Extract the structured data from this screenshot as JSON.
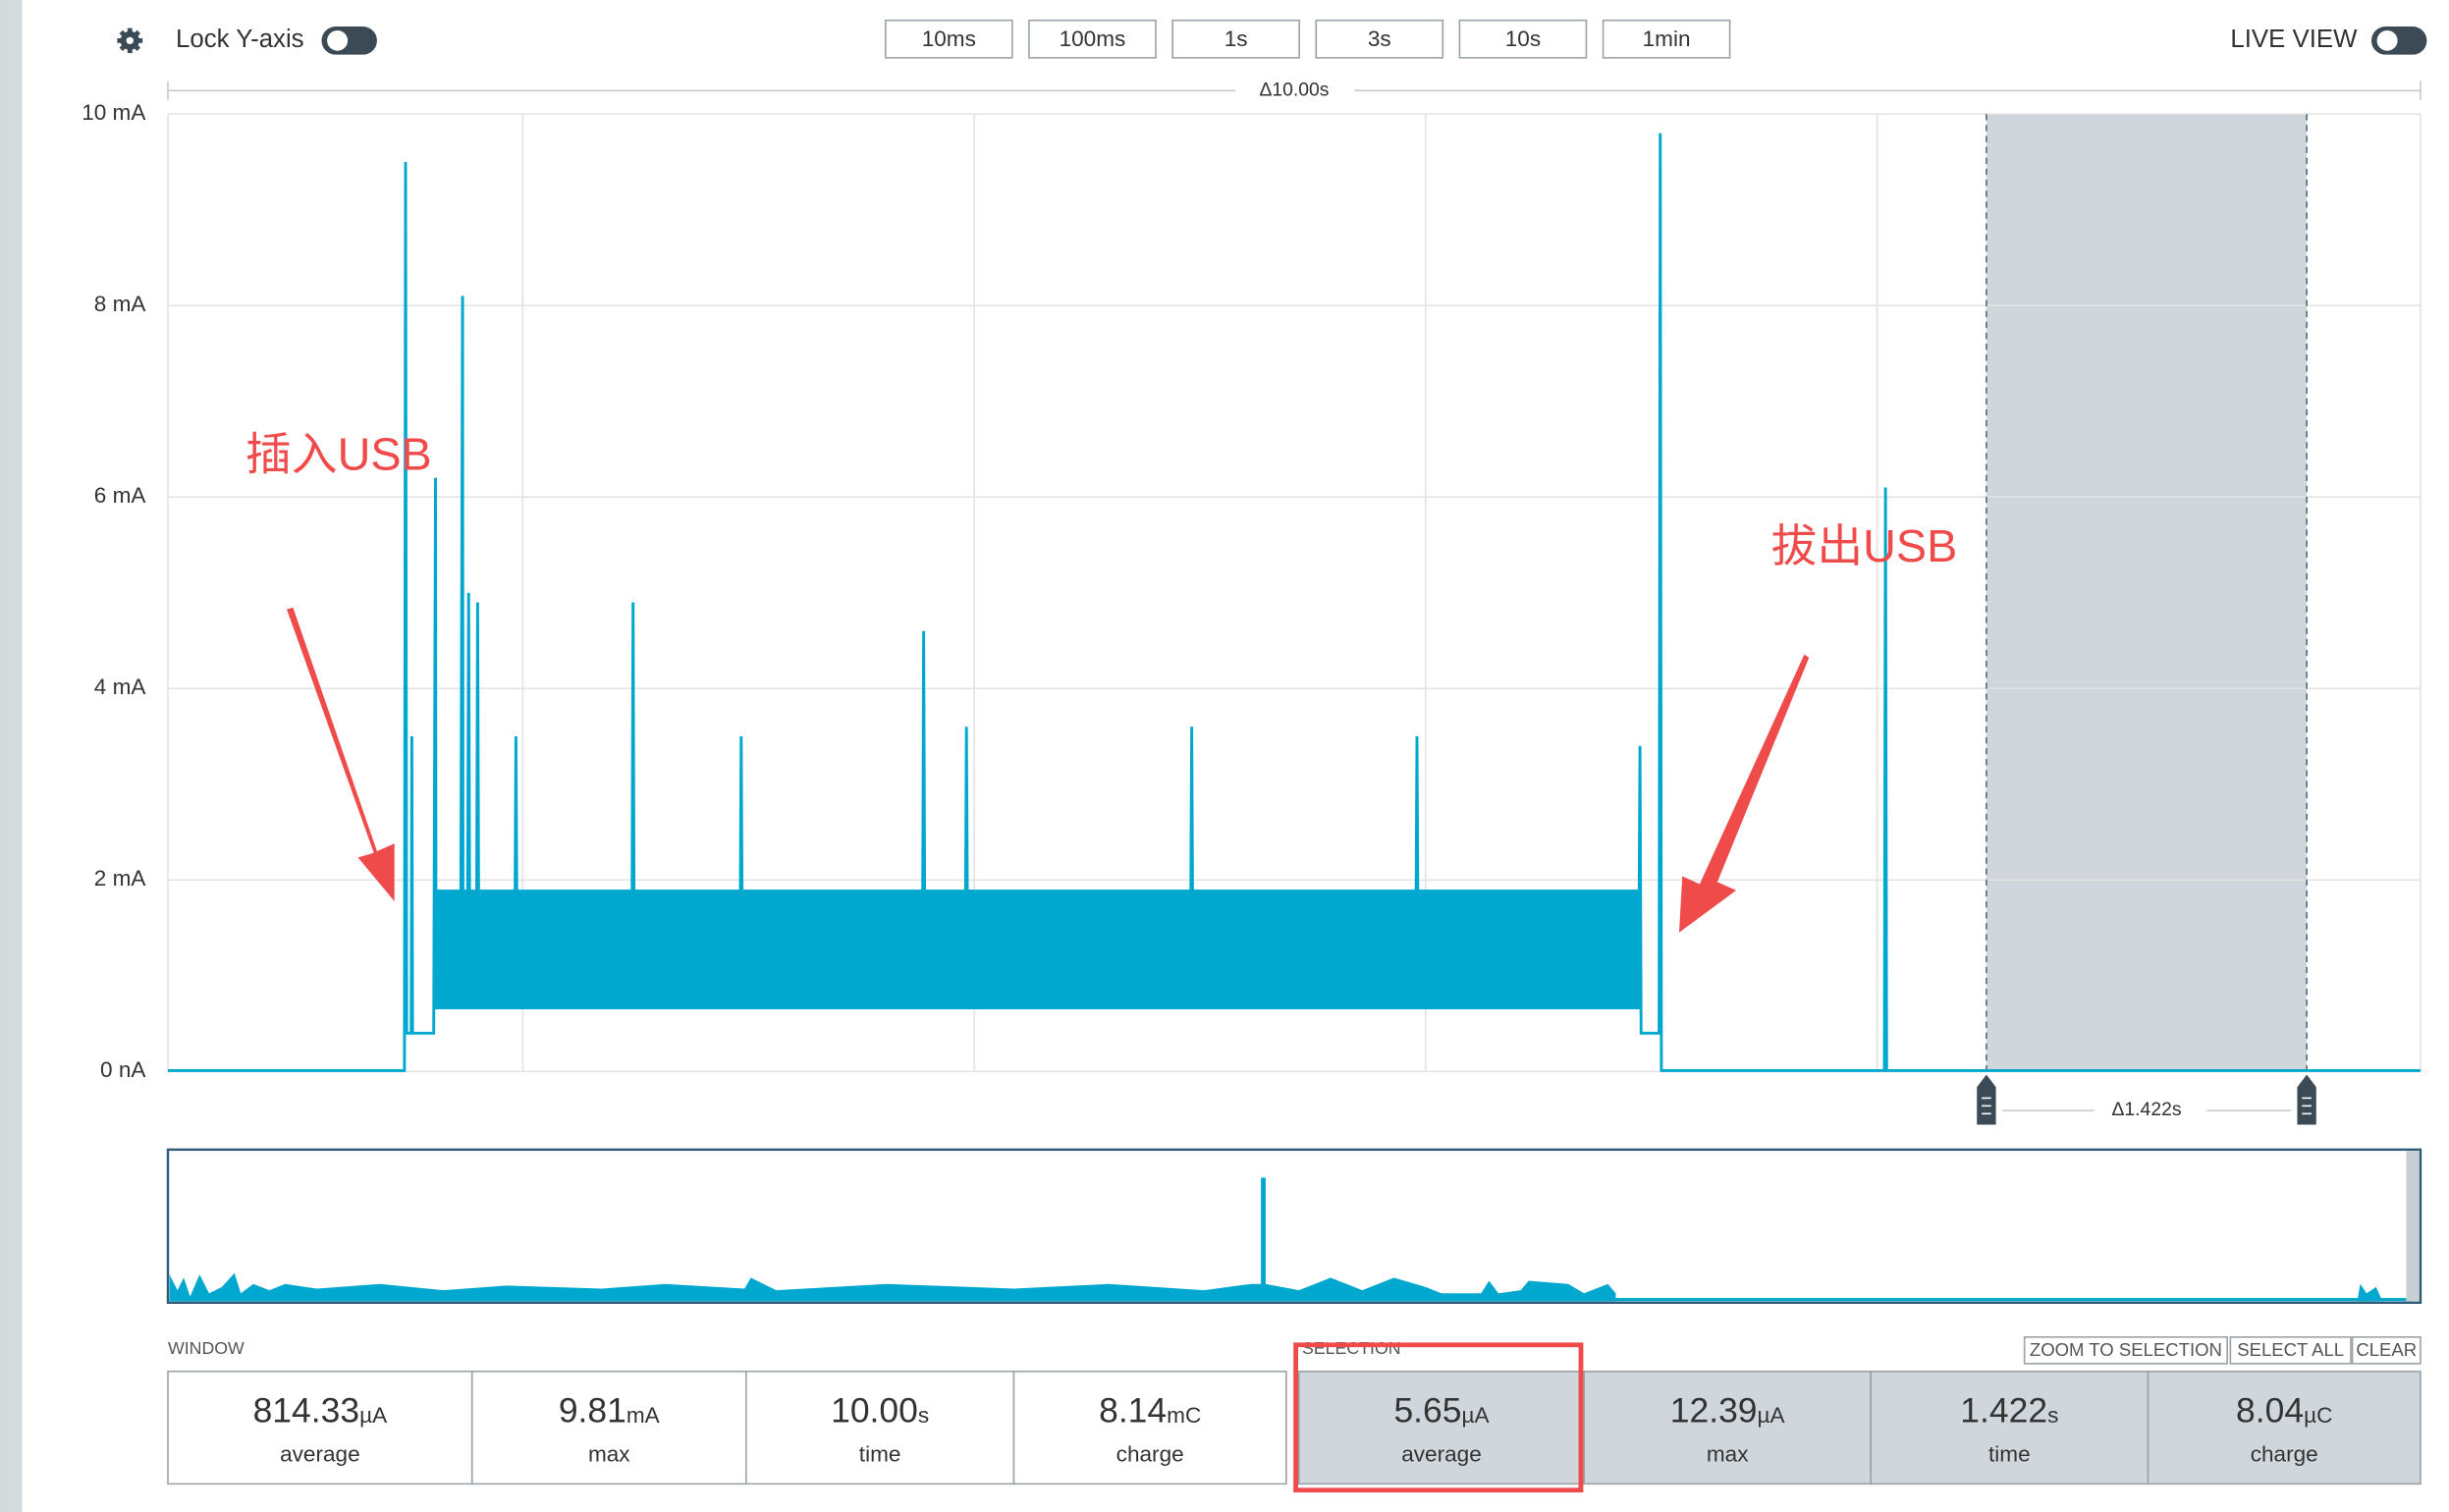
{
  "toolbar": {
    "lock_label": "Lock Y-axis",
    "time_buttons": [
      "10ms",
      "100ms",
      "1s",
      "3s",
      "10s",
      "1min"
    ],
    "live_view": "LIVE VIEW"
  },
  "chart_data": {
    "type": "line",
    "color": "#00a8cf",
    "window_label": "Δ10.00s",
    "xlim": [
      0,
      10
    ],
    "ylim": [
      0,
      10
    ],
    "yticks": [
      {
        "value": 0,
        "label": "0 nA"
      },
      {
        "value": 2,
        "label": "2 mA"
      },
      {
        "value": 4,
        "label": "4 mA"
      },
      {
        "value": 6,
        "label": "6 mA"
      },
      {
        "value": 8,
        "label": "8 mA"
      },
      {
        "value": 10,
        "label": "10 mA"
      }
    ],
    "grid": true,
    "x": [
      0,
      1.05,
      1.055,
      1.06,
      1.08,
      1.083,
      1.086,
      1.18,
      1.188,
      1.19,
      1.3,
      1.308,
      1.31,
      1.33,
      1.335,
      1.34,
      1.37,
      1.375,
      1.38,
      1.54,
      1.545,
      1.55,
      2.06,
      2.065,
      2.07,
      2.54,
      2.545,
      2.55,
      3.35,
      3.355,
      3.36,
      3.54,
      3.545,
      3.55,
      4.54,
      4.545,
      4.55,
      5.54,
      5.545,
      5.55,
      6.53,
      6.535,
      6.54,
      6.62,
      6.625,
      6.63,
      7.62,
      7.625,
      7.63,
      10
    ],
    "values": [
      0.01,
      0.01,
      9.5,
      0.4,
      0.4,
      3.5,
      0.4,
      0.4,
      6.2,
      1.3,
      1.3,
      8.1,
      1.3,
      1.3,
      5.0,
      1.3,
      1.3,
      4.9,
      1.3,
      1.3,
      3.5,
      1.3,
      1.3,
      4.9,
      1.3,
      1.3,
      3.5,
      1.3,
      1.3,
      4.6,
      1.3,
      1.3,
      3.6,
      1.3,
      1.3,
      3.6,
      1.3,
      1.3,
      3.5,
      1.3,
      1.3,
      3.4,
      0.4,
      0.4,
      9.8,
      0.01,
      0.01,
      6.1,
      0.01,
      0.01
    ],
    "band": {
      "x": [
        1.18,
        6.54
      ],
      "low": 0.65,
      "high": 1.9
    },
    "selection": {
      "range": [
        8.073,
        9.495
      ],
      "label": "Δ1.422s"
    },
    "annotations": [
      "插入USB",
      "拔出USB"
    ]
  },
  "stats": {
    "window": {
      "title": "WINDOW",
      "items": [
        {
          "value": "814.33",
          "unit": "µA",
          "label": "average"
        },
        {
          "value": "9.81",
          "unit": "mA",
          "label": "max"
        },
        {
          "value": "10.00",
          "unit": "s",
          "label": "time"
        },
        {
          "value": "8.14",
          "unit": "mC",
          "label": "charge"
        }
      ]
    },
    "selection": {
      "title": "SELECTION",
      "items": [
        {
          "value": "5.65",
          "unit": "µA",
          "label": "average"
        },
        {
          "value": "12.39",
          "unit": "µA",
          "label": "max"
        },
        {
          "value": "1.422",
          "unit": "s",
          "label": "time"
        },
        {
          "value": "8.04",
          "unit": "µC",
          "label": "charge"
        }
      ]
    },
    "actions": [
      "ZOOM TO SELECTION",
      "SELECT ALL",
      "CLEAR"
    ]
  }
}
